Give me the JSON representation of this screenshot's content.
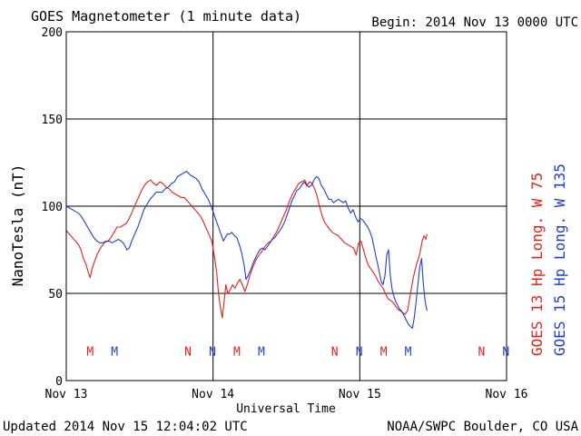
{
  "chart_data": {
    "type": "line",
    "title": "GOES Magnetometer (1 minute data)",
    "begin_label": "Begin:  2014 Nov 13 0000 UTC",
    "xlabel": "Universal Time",
    "ylabel": "NanoTesla (nT)",
    "ylim": [
      0,
      200
    ],
    "y_ticks": [
      0,
      50,
      100,
      150,
      200
    ],
    "xlim_hours": [
      0,
      72
    ],
    "x_ticks": [
      {
        "hour": 0,
        "label": "Nov 13"
      },
      {
        "hour": 24,
        "label": "Nov 14"
      },
      {
        "hour": 48,
        "label": "Nov 15"
      },
      {
        "hour": 72,
        "label": "Nov 16"
      }
    ],
    "grid": true,
    "series": [
      {
        "name": "GOES 13 Hp  Long. W 75",
        "color": "#e8201a",
        "points": [
          [
            0.0,
            86
          ],
          [
            0.5,
            84
          ],
          [
            1.0,
            82
          ],
          [
            1.5,
            80
          ],
          [
            2.0,
            78
          ],
          [
            2.4,
            75
          ],
          [
            2.8,
            70
          ],
          [
            3.2,
            67
          ],
          [
            3.6,
            62
          ],
          [
            3.9,
            59
          ],
          [
            4.2,
            64
          ],
          [
            4.6,
            68
          ],
          [
            5.0,
            72
          ],
          [
            5.6,
            76
          ],
          [
            6.2,
            79
          ],
          [
            6.8,
            80
          ],
          [
            7.3,
            82
          ],
          [
            7.8,
            85
          ],
          [
            8.3,
            88
          ],
          [
            8.8,
            88
          ],
          [
            9.3,
            89
          ],
          [
            9.8,
            90
          ],
          [
            10.3,
            93
          ],
          [
            10.8,
            97
          ],
          [
            11.3,
            101
          ],
          [
            11.8,
            105
          ],
          [
            12.3,
            109
          ],
          [
            12.8,
            112
          ],
          [
            13.3,
            114
          ],
          [
            13.8,
            115
          ],
          [
            14.3,
            113
          ],
          [
            14.8,
            112
          ],
          [
            15.3,
            114
          ],
          [
            15.8,
            113
          ],
          [
            16.3,
            111
          ],
          [
            16.8,
            110
          ],
          [
            17.3,
            108
          ],
          [
            17.8,
            107
          ],
          [
            18.3,
            106
          ],
          [
            18.8,
            105
          ],
          [
            19.3,
            105
          ],
          [
            19.8,
            103
          ],
          [
            20.3,
            101
          ],
          [
            20.8,
            99
          ],
          [
            21.3,
            97
          ],
          [
            21.8,
            95
          ],
          [
            22.3,
            92
          ],
          [
            22.8,
            88
          ],
          [
            23.3,
            84
          ],
          [
            23.8,
            80
          ],
          [
            24.2,
            72
          ],
          [
            24.6,
            62
          ],
          [
            24.9,
            50
          ],
          [
            25.2,
            42
          ],
          [
            25.5,
            36
          ],
          [
            25.8,
            45
          ],
          [
            26.1,
            55
          ],
          [
            26.4,
            50
          ],
          [
            26.8,
            52
          ],
          [
            27.2,
            55
          ],
          [
            27.6,
            53
          ],
          [
            28.0,
            56
          ],
          [
            28.4,
            58
          ],
          [
            28.8,
            55
          ],
          [
            29.2,
            51
          ],
          [
            29.6,
            55
          ],
          [
            30.0,
            60
          ],
          [
            30.5,
            65
          ],
          [
            31.0,
            69
          ],
          [
            31.5,
            72
          ],
          [
            32.0,
            74
          ],
          [
            32.5,
            77
          ],
          [
            33.0,
            79
          ],
          [
            33.5,
            80
          ],
          [
            34.0,
            83
          ],
          [
            34.5,
            86
          ],
          [
            35.0,
            90
          ],
          [
            35.5,
            94
          ],
          [
            36.0,
            98
          ],
          [
            36.5,
            103
          ],
          [
            37.0,
            107
          ],
          [
            37.5,
            110
          ],
          [
            38.0,
            113
          ],
          [
            38.5,
            114
          ],
          [
            39.0,
            115
          ],
          [
            39.4,
            112
          ],
          [
            39.8,
            114
          ],
          [
            40.2,
            113
          ],
          [
            40.6,
            110
          ],
          [
            41.0,
            106
          ],
          [
            41.4,
            100
          ],
          [
            41.8,
            95
          ],
          [
            42.2,
            91
          ],
          [
            42.6,
            89
          ],
          [
            43.0,
            87
          ],
          [
            43.5,
            85
          ],
          [
            44.0,
            84
          ],
          [
            44.5,
            83
          ],
          [
            45.0,
            81
          ],
          [
            45.5,
            79
          ],
          [
            46.0,
            78
          ],
          [
            46.5,
            77
          ],
          [
            47.0,
            76
          ],
          [
            47.4,
            72
          ],
          [
            47.8,
            79
          ],
          [
            48.2,
            80
          ],
          [
            48.6,
            75
          ],
          [
            49.0,
            70
          ],
          [
            49.4,
            66
          ],
          [
            49.8,
            64
          ],
          [
            50.2,
            62
          ],
          [
            50.6,
            60
          ],
          [
            51.0,
            57
          ],
          [
            51.4,
            55
          ],
          [
            51.8,
            53
          ],
          [
            52.2,
            50
          ],
          [
            52.6,
            47
          ],
          [
            53.0,
            46
          ],
          [
            53.4,
            45
          ],
          [
            53.8,
            43
          ],
          [
            54.2,
            41
          ],
          [
            54.6,
            40
          ],
          [
            55.0,
            39
          ],
          [
            55.4,
            38
          ],
          [
            55.8,
            40
          ],
          [
            56.1,
            46
          ],
          [
            56.4,
            52
          ],
          [
            56.7,
            58
          ],
          [
            57.0,
            63
          ],
          [
            57.3,
            67
          ],
          [
            57.6,
            70
          ],
          [
            57.9,
            74
          ],
          [
            58.2,
            80
          ],
          [
            58.5,
            83
          ],
          [
            58.8,
            81
          ],
          [
            59.0,
            84
          ]
        ]
      },
      {
        "name": "GOES 15 Hp  Long. W 135",
        "color": "#1f3fd0",
        "points": [
          [
            0.0,
            100
          ],
          [
            0.5,
            99
          ],
          [
            1.0,
            98
          ],
          [
            1.5,
            97
          ],
          [
            2.0,
            96
          ],
          [
            2.5,
            94
          ],
          [
            3.0,
            91
          ],
          [
            3.5,
            88
          ],
          [
            4.0,
            85
          ],
          [
            4.5,
            82
          ],
          [
            5.0,
            80
          ],
          [
            5.5,
            79
          ],
          [
            6.0,
            79
          ],
          [
            6.5,
            80
          ],
          [
            7.0,
            80
          ],
          [
            7.5,
            79
          ],
          [
            8.0,
            80
          ],
          [
            8.5,
            81
          ],
          [
            9.0,
            80
          ],
          [
            9.5,
            78
          ],
          [
            9.9,
            75
          ],
          [
            10.3,
            76
          ],
          [
            10.7,
            80
          ],
          [
            11.2,
            84
          ],
          [
            11.7,
            88
          ],
          [
            12.2,
            93
          ],
          [
            12.7,
            98
          ],
          [
            13.2,
            101
          ],
          [
            13.7,
            104
          ],
          [
            14.2,
            106
          ],
          [
            14.7,
            108
          ],
          [
            15.2,
            108
          ],
          [
            15.7,
            108
          ],
          [
            16.2,
            110
          ],
          [
            16.7,
            111
          ],
          [
            17.2,
            113
          ],
          [
            17.7,
            114
          ],
          [
            18.2,
            117
          ],
          [
            18.7,
            118
          ],
          [
            19.2,
            119
          ],
          [
            19.7,
            120
          ],
          [
            20.2,
            118
          ],
          [
            20.7,
            117
          ],
          [
            21.2,
            116
          ],
          [
            21.7,
            114
          ],
          [
            22.2,
            110
          ],
          [
            22.7,
            107
          ],
          [
            23.2,
            104
          ],
          [
            23.7,
            100
          ],
          [
            24.1,
            96
          ],
          [
            24.5,
            92
          ],
          [
            24.9,
            88
          ],
          [
            25.3,
            84
          ],
          [
            25.7,
            80
          ],
          [
            26.0,
            82
          ],
          [
            26.3,
            84
          ],
          [
            26.7,
            84
          ],
          [
            27.1,
            85
          ],
          [
            27.5,
            83
          ],
          [
            27.9,
            82
          ],
          [
            28.3,
            78
          ],
          [
            28.7,
            73
          ],
          [
            29.1,
            66
          ],
          [
            29.4,
            58
          ],
          [
            29.7,
            60
          ],
          [
            30.1,
            63
          ],
          [
            30.5,
            67
          ],
          [
            30.9,
            70
          ],
          [
            31.3,
            73
          ],
          [
            31.7,
            75
          ],
          [
            32.1,
            76
          ],
          [
            32.5,
            75
          ],
          [
            32.9,
            77
          ],
          [
            33.3,
            79
          ],
          [
            33.7,
            81
          ],
          [
            34.1,
            82
          ],
          [
            34.5,
            84
          ],
          [
            34.9,
            86
          ],
          [
            35.3,
            88
          ],
          [
            35.7,
            91
          ],
          [
            36.1,
            95
          ],
          [
            36.5,
            99
          ],
          [
            36.9,
            103
          ],
          [
            37.3,
            106
          ],
          [
            37.7,
            109
          ],
          [
            38.1,
            110
          ],
          [
            38.5,
            112
          ],
          [
            38.9,
            114
          ],
          [
            39.3,
            112
          ],
          [
            39.7,
            111
          ],
          [
            40.1,
            112
          ],
          [
            40.5,
            115
          ],
          [
            40.9,
            117
          ],
          [
            41.3,
            116
          ],
          [
            41.7,
            112
          ],
          [
            42.1,
            110
          ],
          [
            42.5,
            107
          ],
          [
            42.9,
            104
          ],
          [
            43.3,
            104
          ],
          [
            43.7,
            102
          ],
          [
            44.1,
            103
          ],
          [
            44.5,
            104
          ],
          [
            44.9,
            103
          ],
          [
            45.3,
            102
          ],
          [
            45.7,
            103
          ],
          [
            46.1,
            99
          ],
          [
            46.5,
            96
          ],
          [
            46.9,
            98
          ],
          [
            47.3,
            94
          ],
          [
            47.7,
            91
          ],
          [
            48.1,
            93
          ],
          [
            48.5,
            92
          ],
          [
            48.9,
            90
          ],
          [
            49.3,
            88
          ],
          [
            49.7,
            85
          ],
          [
            50.0,
            82
          ],
          [
            50.3,
            77
          ],
          [
            50.6,
            72
          ],
          [
            50.9,
            67
          ],
          [
            51.2,
            62
          ],
          [
            51.5,
            57
          ],
          [
            51.8,
            55
          ],
          [
            52.1,
            60
          ],
          [
            52.4,
            72
          ],
          [
            52.7,
            75
          ],
          [
            53.0,
            60
          ],
          [
            53.3,
            52
          ],
          [
            53.6,
            48
          ],
          [
            53.9,
            45
          ],
          [
            54.2,
            43
          ],
          [
            54.5,
            41
          ],
          [
            54.8,
            40
          ],
          [
            55.1,
            38
          ],
          [
            55.4,
            36
          ],
          [
            55.7,
            34
          ],
          [
            56.0,
            32
          ],
          [
            56.3,
            31
          ],
          [
            56.6,
            30
          ],
          [
            56.9,
            36
          ],
          [
            57.2,
            45
          ],
          [
            57.5,
            55
          ],
          [
            57.8,
            65
          ],
          [
            58.1,
            70
          ],
          [
            58.4,
            55
          ],
          [
            58.7,
            45
          ],
          [
            59.0,
            40
          ]
        ]
      }
    ],
    "markers": [
      {
        "hour": 3.9,
        "label": "M",
        "color": "#e8201a"
      },
      {
        "hour": 7.9,
        "label": "M",
        "color": "#1f3fd0"
      },
      {
        "hour": 19.9,
        "label": "N",
        "color": "#e8201a"
      },
      {
        "hour": 23.9,
        "label": "N",
        "color": "#1f3fd0"
      },
      {
        "hour": 27.9,
        "label": "M",
        "color": "#e8201a"
      },
      {
        "hour": 31.9,
        "label": "M",
        "color": "#1f3fd0"
      },
      {
        "hour": 43.9,
        "label": "N",
        "color": "#e8201a"
      },
      {
        "hour": 47.9,
        "label": "N",
        "color": "#1f3fd0"
      },
      {
        "hour": 51.9,
        "label": "M",
        "color": "#e8201a"
      },
      {
        "hour": 55.9,
        "label": "M",
        "color": "#1f3fd0"
      },
      {
        "hour": 67.9,
        "label": "N",
        "color": "#e8201a"
      },
      {
        "hour": 71.9,
        "label": "N",
        "color": "#1f3fd0"
      }
    ],
    "marker_value": 17
  },
  "footer": {
    "updated": "Updated 2014 Nov 15 12:04:02 UTC",
    "source": "NOAA/SWPC Boulder, CO USA"
  }
}
